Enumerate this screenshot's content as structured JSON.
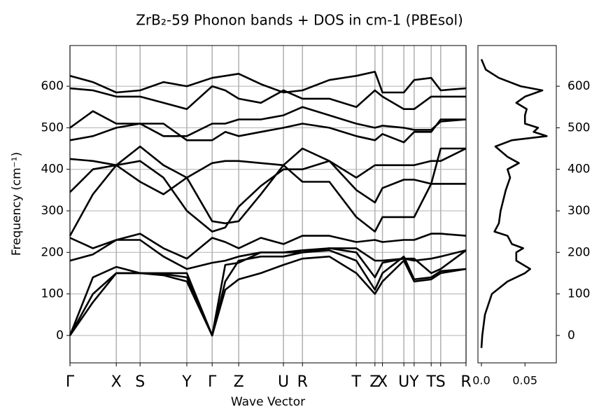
{
  "chart_data": [
    {
      "type": "line",
      "title": "ZrB₂-59 Phonon bands + DOS in cm-1 (PBEsol)",
      "xlabel": "Wave Vector",
      "ylabel": "Frequency (cm⁻¹)",
      "grid": true,
      "xlim": [
        0,
        1
      ],
      "ylim": [
        -66,
        698
      ],
      "yticks": [
        0,
        100,
        200,
        300,
        400,
        500,
        600
      ],
      "xticks": [
        {
          "value": 0,
          "label": "Γ"
        },
        {
          "value": 0.117,
          "label": "X"
        },
        {
          "value": 0.177,
          "label": "S"
        },
        {
          "value": 0.295,
          "label": "Y"
        },
        {
          "value": 0.359,
          "label": "Γ"
        },
        {
          "value": 0.426,
          "label": "Z"
        },
        {
          "value": 0.539,
          "label": "U"
        },
        {
          "value": 0.587,
          "label": "R"
        },
        {
          "value": 0.723,
          "label": "T"
        },
        {
          "value": 0.77,
          "label": "Z"
        },
        {
          "value": 0.789,
          "label": "X"
        },
        {
          "value": 0.843,
          "label": "U"
        },
        {
          "value": 0.869,
          "label": "Y"
        },
        {
          "value": 0.912,
          "label": "T"
        },
        {
          "value": 0.936,
          "label": "S"
        },
        {
          "value": 1,
          "label": "R"
        }
      ],
      "x": [
        0,
        0.058,
        0.117,
        0.177,
        0.236,
        0.295,
        0.359,
        0.392,
        0.426,
        0.482,
        0.539,
        0.587,
        0.655,
        0.723,
        0.77,
        0.789,
        0.843,
        0.869,
        0.912,
        0.936,
        1
      ],
      "series": [
        {
          "color": "#000000",
          "values": [
            0,
            80,
            150,
            150,
            145,
            130,
            0,
            110,
            135,
            150,
            170,
            185,
            190,
            150,
            100,
            130,
            180,
            130,
            135,
            150,
            160
          ]
        },
        {
          "color": "#000000",
          "values": [
            0,
            100,
            150,
            150,
            148,
            140,
            0,
            130,
            180,
            190,
            190,
            200,
            205,
            180,
            110,
            150,
            190,
            135,
            140,
            155,
            160
          ]
        },
        {
          "color": "#000000",
          "values": [
            0,
            140,
            165,
            150,
            150,
            150,
            0,
            170,
            175,
            200,
            200,
            200,
            210,
            200,
            140,
            175,
            185,
            185,
            150,
            160,
            205
          ]
        },
        {
          "color": "#000000",
          "values": [
            180,
            195,
            230,
            230,
            190,
            160,
            175,
            180,
            190,
            200,
            200,
            205,
            210,
            210,
            180,
            180,
            185,
            180,
            185,
            190,
            205
          ]
        },
        {
          "color": "#000000",
          "values": [
            235,
            210,
            230,
            245,
            210,
            185,
            235,
            225,
            210,
            235,
            220,
            240,
            240,
            225,
            230,
            225,
            230,
            230,
            245,
            245,
            240
          ]
        },
        {
          "color": "#000000",
          "values": [
            240,
            340,
            410,
            455,
            410,
            380,
            275,
            270,
            275,
            340,
            410,
            370,
            370,
            285,
            250,
            285,
            285,
            285,
            365,
            365,
            365
          ]
        },
        {
          "color": "#000000",
          "values": [
            345,
            400,
            410,
            420,
            380,
            300,
            250,
            260,
            310,
            360,
            400,
            400,
            420,
            350,
            320,
            355,
            375,
            375,
            365,
            450,
            450
          ]
        },
        {
          "color": "#000000",
          "values": [
            425,
            420,
            410,
            370,
            340,
            380,
            415,
            420,
            420,
            415,
            410,
            450,
            420,
            380,
            410,
            410,
            410,
            410,
            420,
            420,
            450
          ]
        },
        {
          "color": "#000000",
          "values": [
            470,
            480,
            500,
            510,
            510,
            470,
            470,
            490,
            480,
            490,
            500,
            510,
            500,
            480,
            470,
            485,
            465,
            490,
            490,
            520,
            520
          ]
        },
        {
          "color": "#000000",
          "values": [
            500,
            540,
            510,
            510,
            480,
            480,
            510,
            510,
            520,
            520,
            530,
            550,
            530,
            510,
            500,
            505,
            500,
            495,
            495,
            515,
            520
          ]
        },
        {
          "color": "#000000",
          "values": [
            595,
            590,
            575,
            575,
            560,
            545,
            600,
            590,
            570,
            560,
            590,
            570,
            570,
            550,
            590,
            575,
            545,
            545,
            575,
            575,
            575
          ]
        },
        {
          "color": "#000000",
          "values": [
            625,
            610,
            585,
            590,
            610,
            600,
            620,
            625,
            630,
            605,
            585,
            590,
            615,
            625,
            635,
            585,
            585,
            615,
            620,
            590,
            595
          ]
        }
      ]
    },
    {
      "type": "dos",
      "color": "#000000",
      "xlim": [
        -0.004,
        0.086
      ],
      "xticks": [
        {
          "value": 0,
          "label": "0.0"
        },
        0.05
      ],
      "ylim": [
        -66,
        698
      ],
      "yticks": [
        0,
        100,
        200,
        300,
        400,
        500,
        600
      ],
      "frequencies": [
        -30,
        0,
        50,
        100,
        130,
        150,
        160,
        180,
        200,
        210,
        220,
        240,
        250,
        270,
        300,
        350,
        380,
        400,
        415,
        430,
        455,
        470,
        480,
        490,
        500,
        510,
        530,
        545,
        560,
        575,
        590,
        600,
        620,
        640,
        665
      ],
      "values": [
        0,
        0.001,
        0.004,
        0.012,
        0.03,
        0.05,
        0.056,
        0.04,
        0.04,
        0.048,
        0.035,
        0.03,
        0.015,
        0.02,
        0.022,
        0.028,
        0.033,
        0.03,
        0.043,
        0.03,
        0.016,
        0.035,
        0.075,
        0.06,
        0.065,
        0.05,
        0.05,
        0.052,
        0.04,
        0.05,
        0.07,
        0.045,
        0.02,
        0.005,
        0
      ]
    }
  ]
}
